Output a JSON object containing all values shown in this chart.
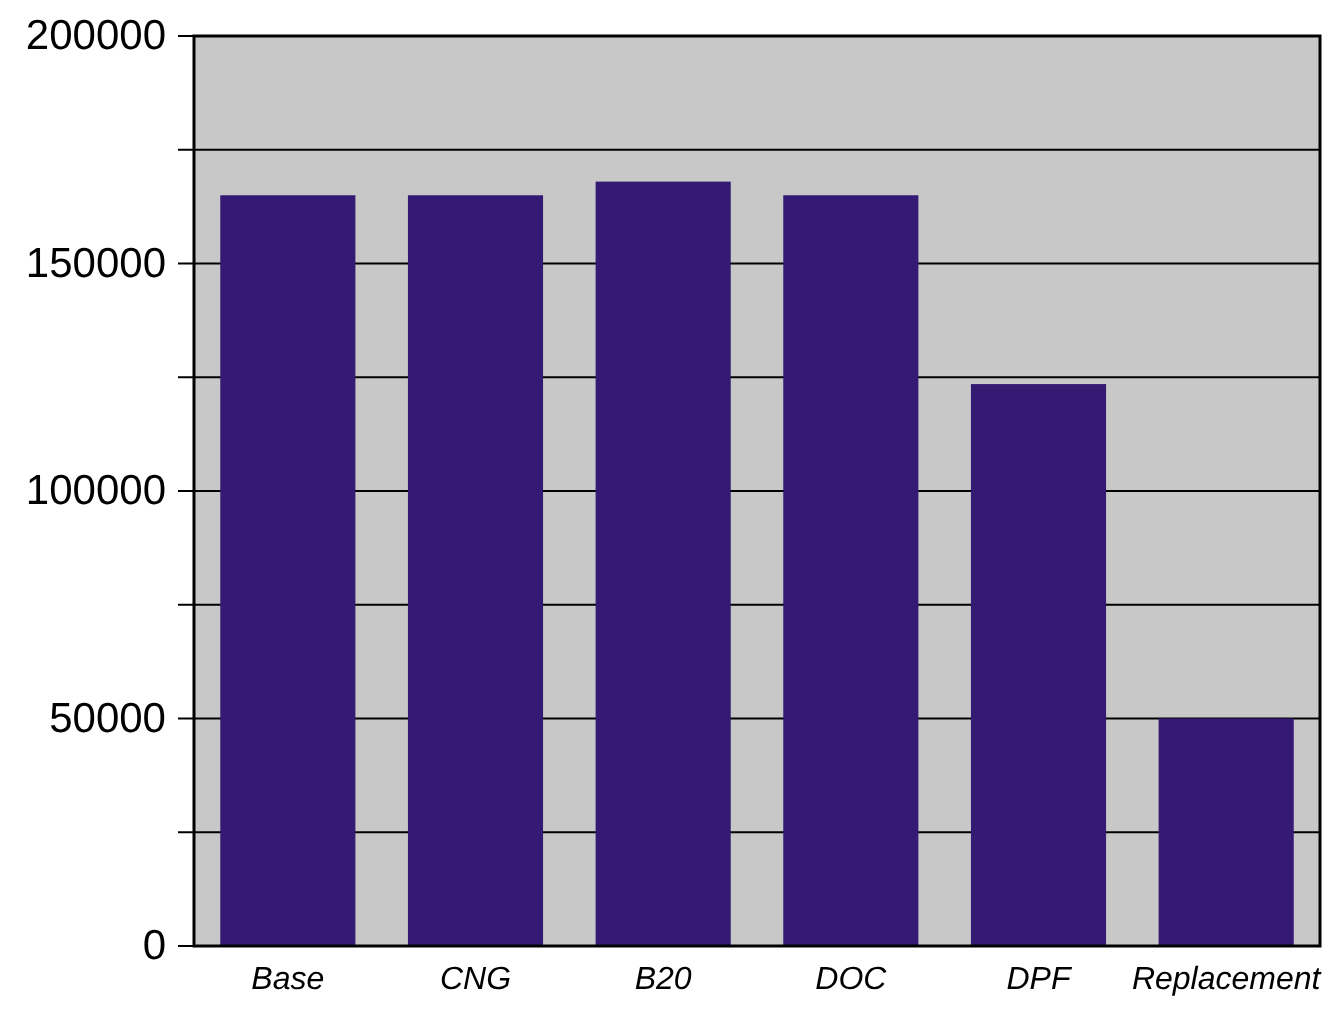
{
  "chart_data": {
    "type": "bar",
    "categories": [
      "Base",
      "CNG",
      "B20",
      "DOC",
      "DPF",
      "Replacement"
    ],
    "values": [
      165000,
      165000,
      168000,
      165000,
      123500,
      50000
    ],
    "color": "#341a73",
    "ylim": [
      0,
      200000
    ],
    "yticks": [
      0,
      {
        "value": 25000,
        "label": null
      },
      50000,
      {
        "value": 75000,
        "label": null
      },
      100000,
      {
        "value": 125000,
        "label": null
      },
      150000,
      {
        "value": 175000,
        "label": null
      },
      200000
    ],
    "grid": "y"
  }
}
